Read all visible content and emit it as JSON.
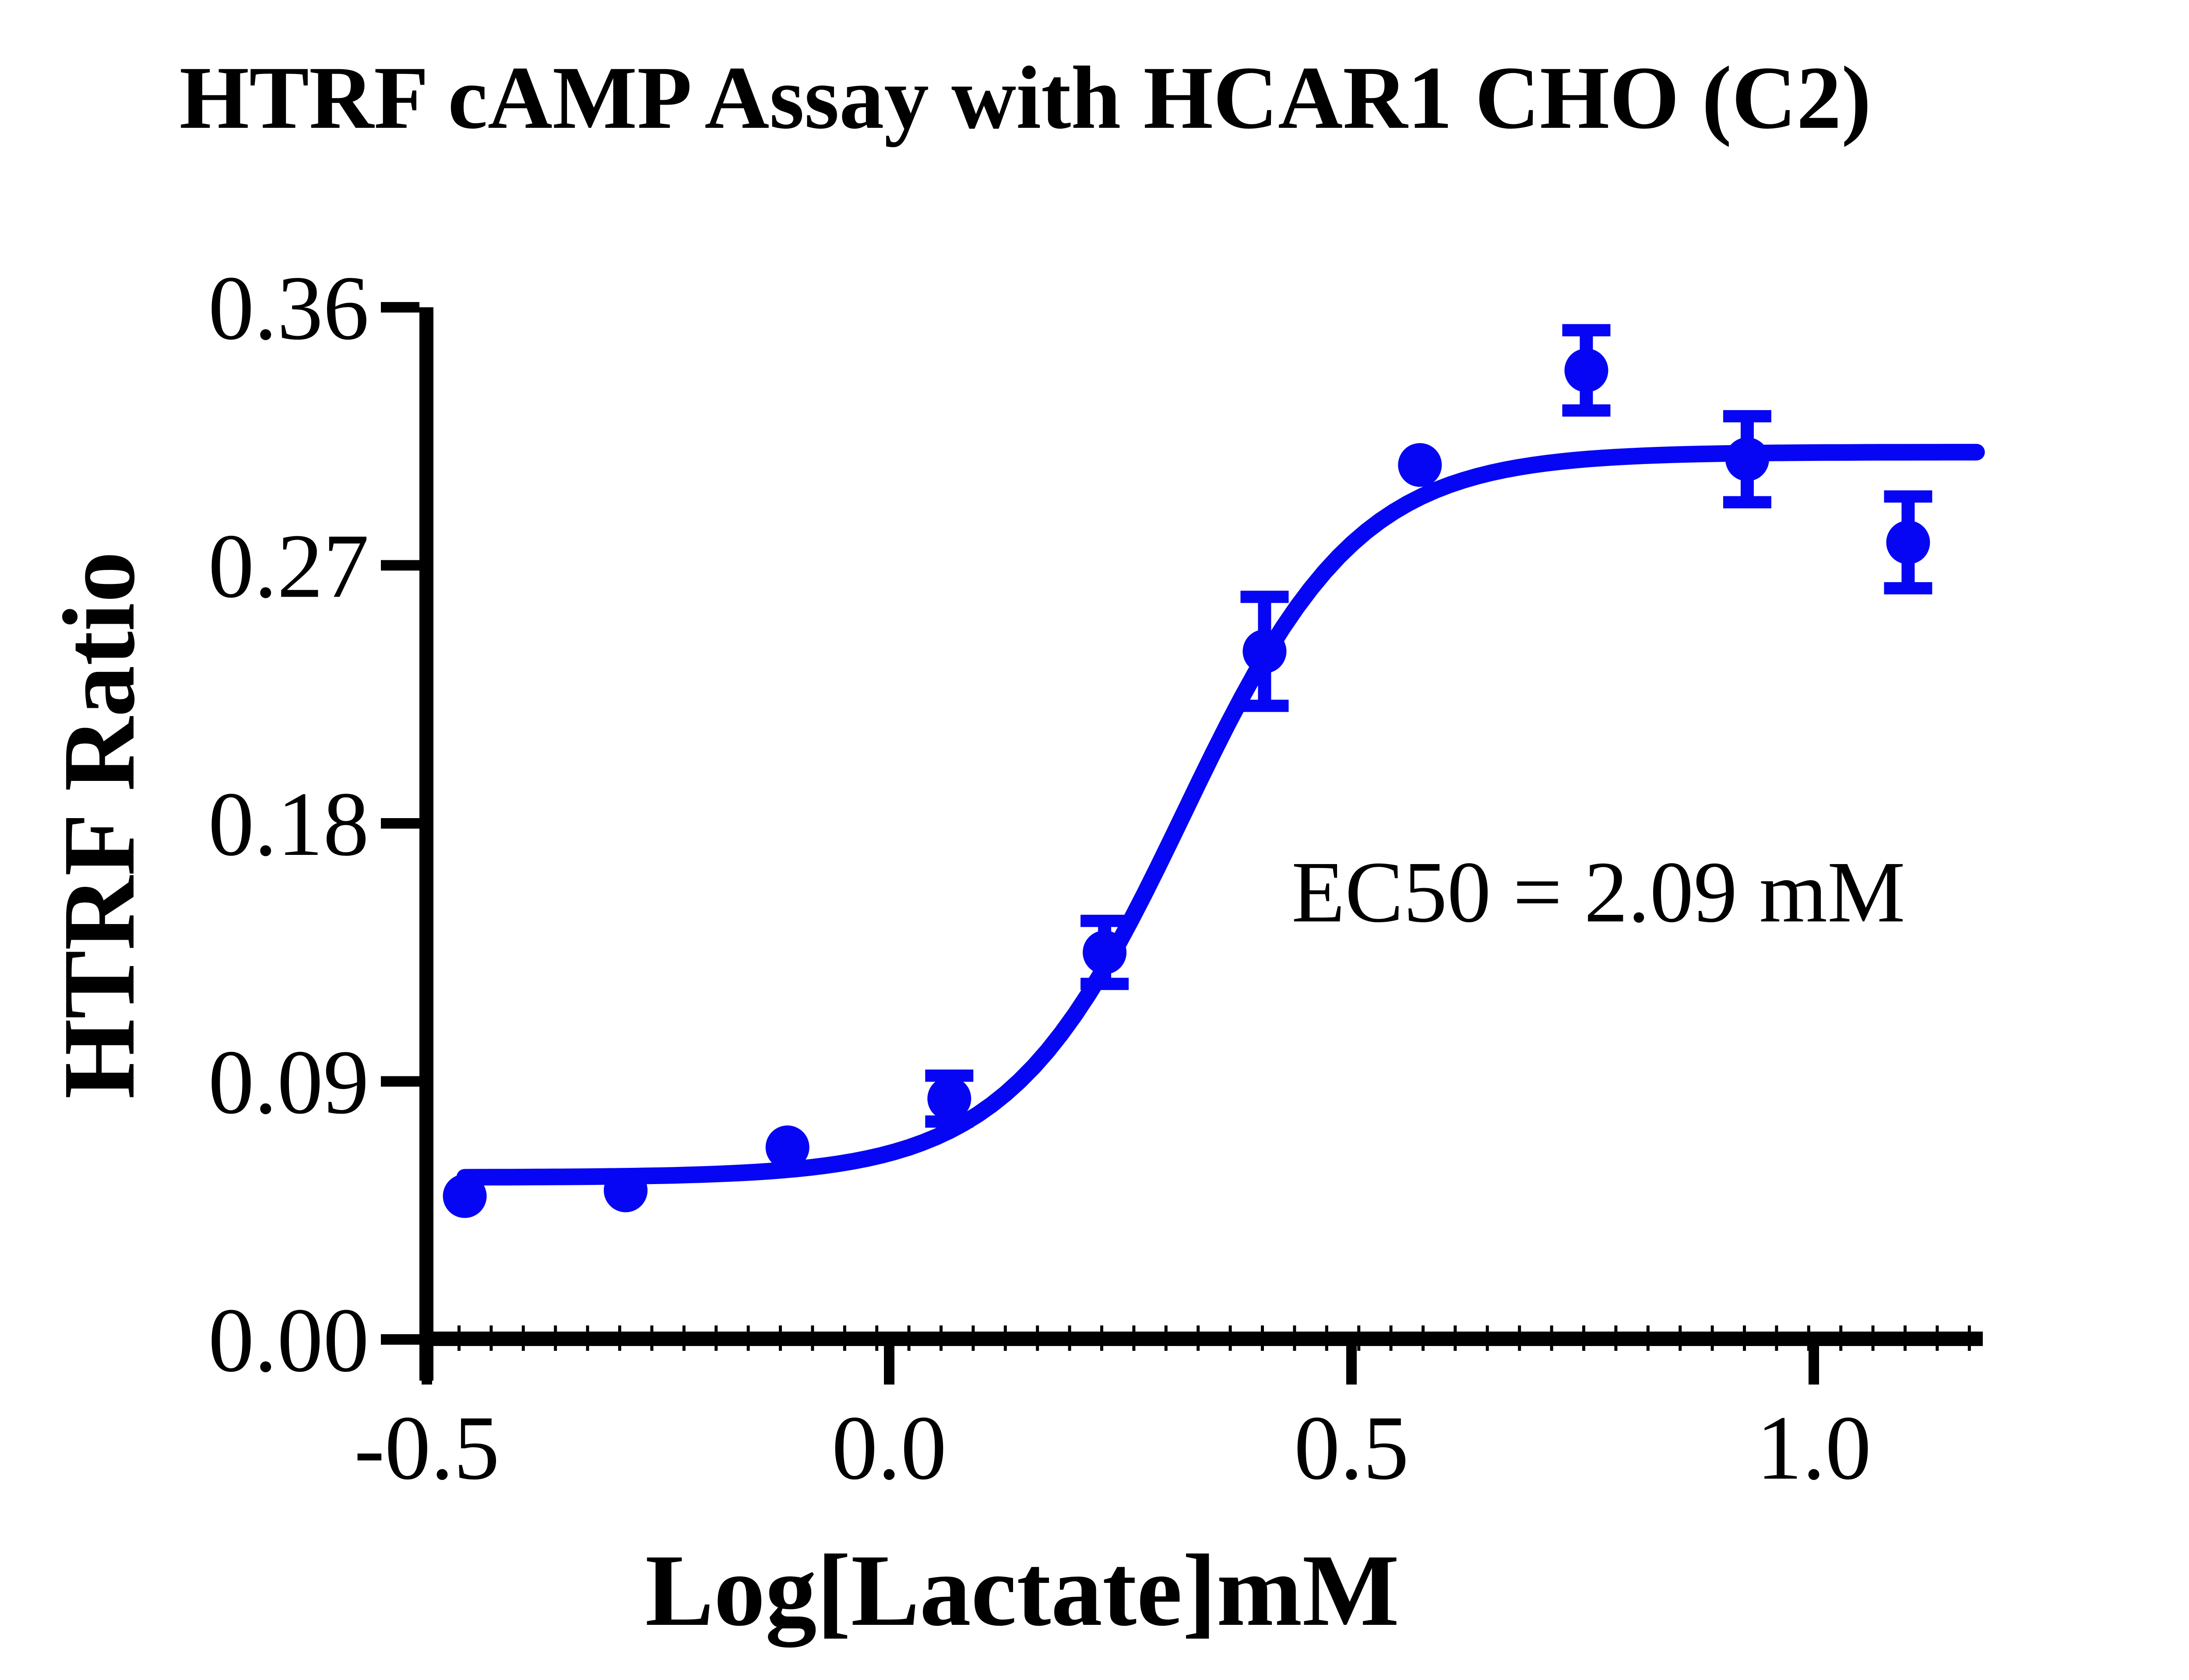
{
  "page": {
    "background": "#ffffff",
    "text_color": "#000000"
  },
  "chart_data": {
    "type": "scatter",
    "title": "HTRF cAMP Assay with HCAR1 CHO (C2)",
    "xlabel": "Log[Lactate]mM",
    "ylabel": "HTRF Ratio",
    "annotation": {
      "text": "EC50 = 2.09 mM",
      "ec50_mM": 2.09
    },
    "grid": false,
    "legend": false,
    "axis_color": "#000000",
    "xlim": [
      -0.5,
      1.18
    ],
    "ylim": [
      0.0,
      0.36
    ],
    "x_ticks": [
      {
        "value": -0.5,
        "label": "-0.5"
      },
      {
        "value": 0.0,
        "label": "0.0"
      },
      {
        "value": 0.5,
        "label": "0.5"
      },
      {
        "value": 1.0,
        "label": "1.0"
      }
    ],
    "y_ticks": [
      {
        "value": 0.0,
        "label": "0.00"
      },
      {
        "value": 0.09,
        "label": "0.09"
      },
      {
        "value": 0.18,
        "label": "0.18"
      },
      {
        "value": 0.27,
        "label": "0.27"
      },
      {
        "value": 0.36,
        "label": "0.36"
      }
    ],
    "series": [
      {
        "name": "HCAR1 CHO (C2)",
        "color": "#0606f5",
        "marker": "circle",
        "points": [
          {
            "x": -0.459,
            "y": 0.05,
            "err": null
          },
          {
            "x": -0.285,
            "y": 0.052,
            "err": null
          },
          {
            "x": -0.11,
            "y": 0.067,
            "err": null
          },
          {
            "x": 0.065,
            "y": 0.084,
            "err": 0.008
          },
          {
            "x": 0.233,
            "y": 0.135,
            "err": 0.011
          },
          {
            "x": 0.406,
            "y": 0.24,
            "err": 0.019
          },
          {
            "x": 0.574,
            "y": 0.305,
            "err": null
          },
          {
            "x": 0.754,
            "y": 0.338,
            "err": 0.014
          },
          {
            "x": 0.928,
            "y": 0.307,
            "err": 0.015
          },
          {
            "x": 1.102,
            "y": 0.278,
            "err": 0.016
          }
        ]
      }
    ],
    "fit_curve": {
      "model": "4PL",
      "bottom": 0.0565,
      "top": 0.3095,
      "log_ec50": 0.318,
      "hill": 4.6,
      "x_start": -0.459,
      "x_end": 1.178
    }
  }
}
